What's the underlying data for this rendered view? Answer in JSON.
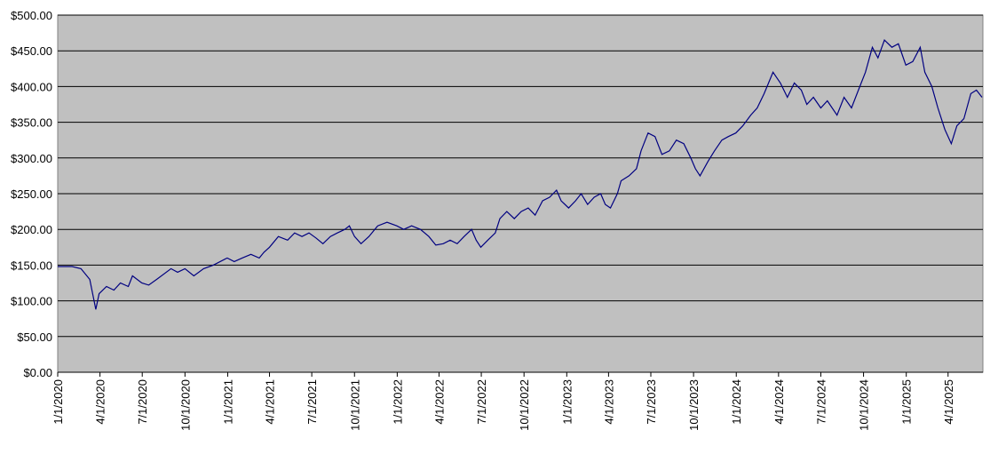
{
  "chart_data": {
    "type": "line",
    "x": [
      "1/1/2020",
      "2/1/2020",
      "2/20/2020",
      "3/10/2020",
      "3/23/2020",
      "3/30/2020",
      "4/15/2020",
      "5/1/2020",
      "5/15/2020",
      "6/1/2020",
      "6/10/2020",
      "6/30/2020",
      "7/15/2020",
      "8/1/2020",
      "9/1/2020",
      "9/15/2020",
      "10/1/2020",
      "10/20/2020",
      "11/10/2020",
      "12/1/2020",
      "12/31/2020",
      "1/15/2021",
      "2/1/2021",
      "2/20/2021",
      "3/10/2021",
      "3/20/2021",
      "4/1/2021",
      "4/20/2021",
      "5/10/2021",
      "5/25/2021",
      "6/10/2021",
      "6/25/2021",
      "7/10/2021",
      "7/25/2021",
      "8/10/2021",
      "8/25/2021",
      "9/10/2021",
      "9/20/2021",
      "10/1/2021",
      "10/15/2021",
      "11/1/2021",
      "11/20/2021",
      "12/10/2021",
      "12/31/2021",
      "1/15/2022",
      "2/1/2022",
      "2/20/2022",
      "3/10/2022",
      "3/25/2022",
      "4/10/2022",
      "4/25/2022",
      "5/10/2022",
      "5/25/2022",
      "6/10/2022",
      "6/20/2022",
      "6/30/2022",
      "7/15/2022",
      "7/31/2022",
      "8/10/2022",
      "8/25/2022",
      "9/10/2022",
      "9/25/2022",
      "10/10/2022",
      "10/25/2022",
      "11/10/2022",
      "11/25/2022",
      "12/10/2022",
      "12/20/2022",
      "1/5/2023",
      "1/20/2023",
      "2/1/2023",
      "2/15/2023",
      "3/1/2023",
      "3/15/2023",
      "3/25/2023",
      "4/5/2023",
      "4/20/2023",
      "4/28/2023",
      "5/15/2023",
      "5/31/2023",
      "6/10/2023",
      "6/25/2023",
      "7/10/2023",
      "7/25/2023",
      "8/10/2023",
      "8/25/2023",
      "9/10/2023",
      "9/25/2023",
      "10/5/2023",
      "10/15/2023",
      "11/1/2023",
      "11/15/2023",
      "12/1/2023",
      "12/15/2023",
      "12/31/2023",
      "1/15/2024",
      "2/1/2024",
      "2/15/2024",
      "3/1/2024",
      "3/20/2024",
      "4/5/2024",
      "4/20/2024",
      "5/5/2024",
      "5/20/2024",
      "6/1/2024",
      "6/15/2024",
      "7/1/2024",
      "7/15/2024",
      "8/5/2024",
      "8/20/2024",
      "9/5/2024",
      "9/20/2024",
      "10/5/2024",
      "10/20/2024",
      "11/1/2024",
      "11/15/2024",
      "12/1/2024",
      "12/15/2024",
      "12/31/2024",
      "1/15/2025",
      "1/31/2025",
      "2/10/2025",
      "2/25/2025",
      "3/10/2025",
      "3/25/2025",
      "4/8/2025",
      "4/20/2025",
      "5/5/2025",
      "5/20/2025",
      "6/1/2025",
      "6/13/2025"
    ],
    "values": [
      148,
      148,
      145,
      130,
      88,
      110,
      120,
      115,
      125,
      120,
      135,
      125,
      122,
      130,
      145,
      140,
      145,
      135,
      145,
      150,
      160,
      155,
      160,
      165,
      160,
      168,
      175,
      190,
      185,
      195,
      190,
      195,
      188,
      180,
      190,
      195,
      200,
      205,
      190,
      180,
      190,
      205,
      210,
      205,
      200,
      205,
      200,
      190,
      178,
      180,
      185,
      180,
      190,
      200,
      185,
      175,
      185,
      195,
      215,
      225,
      215,
      225,
      230,
      220,
      240,
      245,
      255,
      240,
      230,
      240,
      250,
      235,
      245,
      250,
      235,
      230,
      250,
      268,
      275,
      285,
      310,
      335,
      330,
      305,
      310,
      325,
      320,
      300,
      285,
      275,
      295,
      310,
      325,
      330,
      335,
      345,
      360,
      370,
      390,
      420,
      405,
      385,
      405,
      395,
      375,
      385,
      370,
      380,
      360,
      385,
      370,
      395,
      420,
      455,
      440,
      465,
      455,
      460,
      430,
      435,
      455,
      420,
      400,
      370,
      340,
      320,
      345,
      355,
      390,
      395,
      385
    ],
    "color": "#000080",
    "xlim": [
      "1/1/2020",
      "6/15/2025"
    ],
    "xticks": [
      "1/1/2020",
      "4/1/2020",
      "7/1/2020",
      "10/1/2020",
      "1/1/2021",
      "4/1/2021",
      "7/1/2021",
      "10/1/2021",
      "1/1/2022",
      "4/1/2022",
      "7/1/2022",
      "10/1/2022",
      "1/1/2023",
      "4/1/2023",
      "7/1/2023",
      "10/1/2023",
      "1/1/2024",
      "4/1/2024",
      "7/1/2024",
      "10/1/2024",
      "1/1/2025",
      "4/1/2025"
    ],
    "ylim": [
      0,
      500
    ],
    "yticks": [
      {
        "value": 0,
        "label": "$0.00"
      },
      {
        "value": 50,
        "label": "$50.00"
      },
      {
        "value": 100,
        "label": "$100.00"
      },
      {
        "value": 150,
        "label": "$150.00"
      },
      {
        "value": 200,
        "label": "$200.00"
      },
      {
        "value": 250,
        "label": "$250.00"
      },
      {
        "value": 300,
        "label": "$300.00"
      },
      {
        "value": 350,
        "label": "$350.00"
      },
      {
        "value": 400,
        "label": "$400.00"
      },
      {
        "value": 450,
        "label": "$450.00"
      },
      {
        "value": 500,
        "label": "$500.00"
      }
    ],
    "grid": true
  }
}
